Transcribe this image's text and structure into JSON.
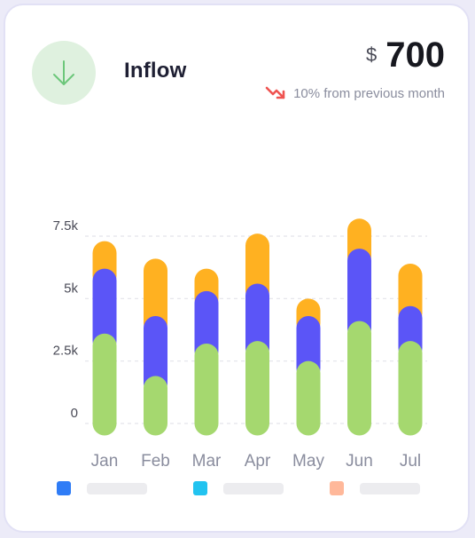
{
  "header": {
    "title": "Inflow",
    "currency_symbol": "$",
    "amount": "700",
    "change_text": "10% from previous month"
  },
  "icons": {
    "main": "arrow-down-icon",
    "trend": "trend-down-icon"
  },
  "colors": {
    "icon_bg": "#dff1df",
    "icon_stroke": "#6cc77a",
    "trend": "#ef5350",
    "grid": "#e3e4ea",
    "tick_text": "#4a4b57",
    "category_text": "#8a8d9e"
  },
  "legend": [
    {
      "color": "#2f7cf6"
    },
    {
      "color": "#22c3f0"
    },
    {
      "color": "#ffb89a"
    }
  ],
  "chart_data": {
    "type": "bar",
    "stacked": true,
    "categories": [
      "Jan",
      "Feb",
      "Mar",
      "Apr",
      "May",
      "Jun",
      "Jul"
    ],
    "y_ticks": [
      {
        "value": 0,
        "label": "0"
      },
      {
        "value": 2500,
        "label": "2.5k"
      },
      {
        "value": 5000,
        "label": "5k"
      },
      {
        "value": 7500,
        "label": "7.5k"
      }
    ],
    "ylim": [
      0,
      7500
    ],
    "grid": true,
    "series": [
      {
        "color": "#a5d86f",
        "values": [
          3600,
          1900,
          3200,
          3300,
          2500,
          4100,
          3300
        ]
      },
      {
        "color": "#5b55f7",
        "values": [
          2600,
          2400,
          2100,
          2300,
          1800,
          2900,
          1400
        ]
      },
      {
        "color": "#ffb121",
        "values": [
          1100,
          2300,
          900,
          2000,
          700,
          1200,
          1700
        ]
      }
    ]
  }
}
